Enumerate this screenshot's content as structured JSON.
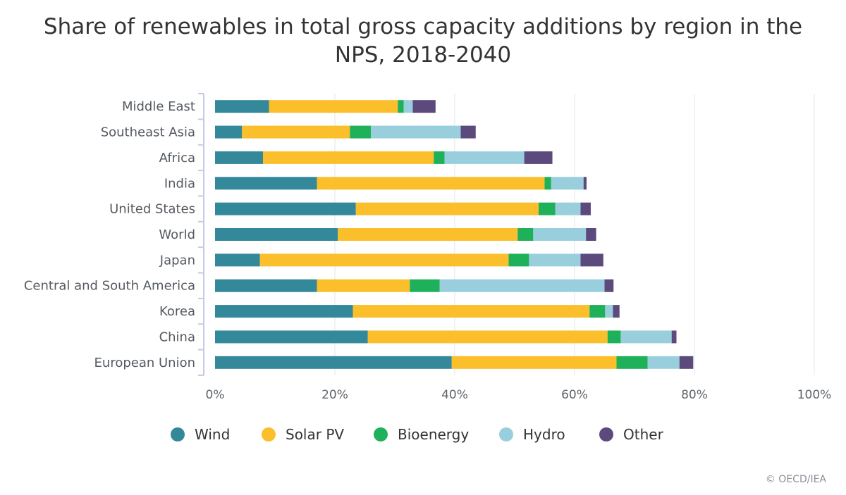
{
  "chart_data": {
    "type": "bar",
    "orientation": "horizontal",
    "stacked": true,
    "title_lines": [
      "Share of renewables in total gross capacity additions by region in the",
      "NPS, 2018-2040"
    ],
    "categories": [
      "Middle East",
      "Southeast Asia",
      "Africa",
      "India",
      "United States",
      "World",
      "Japan",
      "Central and South America",
      "Korea",
      "China",
      "European Union"
    ],
    "series": [
      {
        "name": "Wind",
        "color": "#33889a",
        "values": [
          9,
          4.5,
          8,
          17,
          23.5,
          20.5,
          7.5,
          17,
          23,
          25.5,
          39.5
        ]
      },
      {
        "name": "Solar PV",
        "color": "#fbbf2b",
        "values": [
          21.5,
          18,
          28.5,
          38,
          30.5,
          30,
          41.5,
          15.5,
          39.5,
          40,
          27.5
        ]
      },
      {
        "name": "Bioenergy",
        "color": "#1fb15a",
        "values": [
          1,
          3.5,
          1.8,
          1.1,
          2.8,
          2.6,
          3.4,
          5,
          2.6,
          2.2,
          5.2
        ]
      },
      {
        "name": "Hydro",
        "color": "#99cfdd",
        "values": [
          1.5,
          15,
          13.3,
          5.4,
          4.2,
          8.8,
          8.6,
          27.5,
          1.3,
          8.5,
          5.3
        ]
      },
      {
        "name": "Other",
        "color": "#5c4a7d",
        "values": [
          3.8,
          2.5,
          4.7,
          0.5,
          1.7,
          1.7,
          3.8,
          1.5,
          1.1,
          0.8,
          2.3
        ]
      }
    ],
    "xlim": [
      0,
      100
    ],
    "x_ticks": [
      0,
      20,
      40,
      60,
      80,
      100
    ],
    "x_tick_labels": [
      "0%",
      "20%",
      "40%",
      "60%",
      "80%",
      "100%"
    ],
    "grid": true,
    "legend_position": "bottom"
  },
  "footer": {
    "copyright": "© OECD/IEA"
  }
}
